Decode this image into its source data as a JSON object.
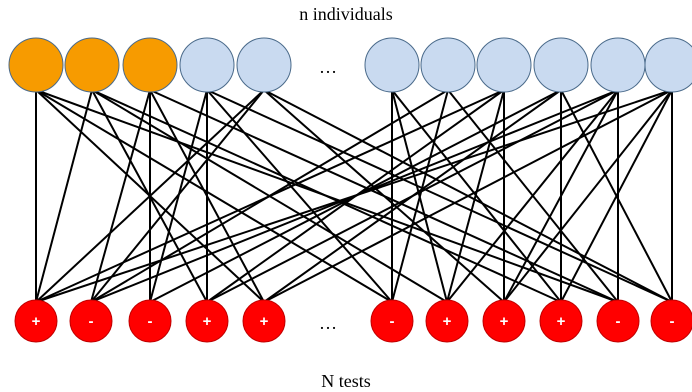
{
  "title_top": "n individuals",
  "title_bottom": "N tests",
  "ellipsis": "…",
  "colors": {
    "infected": "#f79b00",
    "healthy": "#c9daf0",
    "test_node": "#ff0000",
    "edge": "#000000"
  },
  "individuals": [
    {
      "status": "infected"
    },
    {
      "status": "infected"
    },
    {
      "status": "infected"
    },
    {
      "status": "healthy"
    },
    {
      "status": "healthy"
    },
    {
      "status": "healthy"
    },
    {
      "status": "healthy"
    },
    {
      "status": "healthy"
    },
    {
      "status": "healthy"
    },
    {
      "status": "healthy"
    },
    {
      "status": "healthy"
    }
  ],
  "tests": [
    {
      "sign": "+"
    },
    {
      "sign": "-"
    },
    {
      "sign": "-"
    },
    {
      "sign": "+"
    },
    {
      "sign": "+"
    },
    {
      "sign": "-"
    },
    {
      "sign": "+"
    },
    {
      "sign": "+"
    },
    {
      "sign": "+"
    },
    {
      "sign": "-"
    },
    {
      "sign": "-"
    }
  ],
  "edges": [
    [
      0,
      0
    ],
    [
      0,
      4
    ],
    [
      0,
      5
    ],
    [
      0,
      9
    ],
    [
      1,
      0
    ],
    [
      1,
      3
    ],
    [
      1,
      6
    ],
    [
      1,
      8
    ],
    [
      2,
      1
    ],
    [
      2,
      2
    ],
    [
      2,
      4
    ],
    [
      2,
      9
    ],
    [
      3,
      2
    ],
    [
      3,
      3
    ],
    [
      3,
      5
    ],
    [
      3,
      10
    ],
    [
      4,
      0
    ],
    [
      4,
      1
    ],
    [
      4,
      7
    ],
    [
      4,
      10
    ],
    [
      5,
      5
    ],
    [
      5,
      6
    ],
    [
      5,
      8
    ],
    [
      6,
      1
    ],
    [
      6,
      5
    ],
    [
      6,
      9
    ],
    [
      7,
      0
    ],
    [
      7,
      3
    ],
    [
      7,
      6
    ],
    [
      7,
      7
    ],
    [
      8,
      2
    ],
    [
      8,
      4
    ],
    [
      8,
      8
    ],
    [
      8,
      10
    ],
    [
      9,
      1
    ],
    [
      9,
      3
    ],
    [
      9,
      6
    ],
    [
      9,
      7
    ],
    [
      9,
      9
    ],
    [
      10,
      0
    ],
    [
      10,
      4
    ],
    [
      10,
      7
    ],
    [
      10,
      8
    ],
    [
      10,
      10
    ]
  ]
}
